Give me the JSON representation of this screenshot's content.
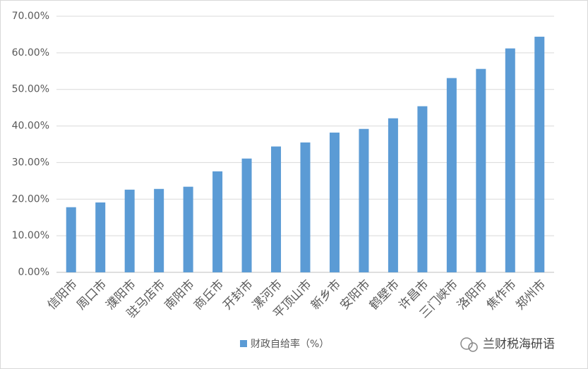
{
  "chart_data": {
    "type": "bar",
    "categories": [
      "信阳市",
      "周口市",
      "濮阳市",
      "驻马店市",
      "南阳市",
      "商丘市",
      "开封市",
      "漯河市",
      "平顶山市",
      "新乡市",
      "安阳市",
      "鹤壁市",
      "许昌市",
      "三门峡市",
      "洛阳市",
      "焦作市",
      "郑州市"
    ],
    "series": [
      {
        "name": "财政自给率（%）",
        "color": "#5b9bd5",
        "values": [
          17.8,
          19.1,
          22.6,
          22.8,
          23.4,
          27.6,
          31.1,
          34.4,
          35.5,
          38.2,
          39.2,
          42.1,
          45.4,
          53.1,
          55.6,
          61.2,
          64.4
        ]
      }
    ],
    "ylim": [
      0,
      70
    ],
    "yticks": [
      {
        "value": 0,
        "label": "0.00%"
      },
      {
        "value": 10,
        "label": "10.00%"
      },
      {
        "value": 20,
        "label": "20.00%"
      },
      {
        "value": 30,
        "label": "30.00%"
      },
      {
        "value": 40,
        "label": "40.00%"
      },
      {
        "value": 50,
        "label": "50.00%"
      },
      {
        "value": 60,
        "label": "60.00%"
      },
      {
        "value": 70,
        "label": "70.00%"
      }
    ],
    "grid": true,
    "legend": "bottom",
    "watermark": "兰财税海研语"
  }
}
